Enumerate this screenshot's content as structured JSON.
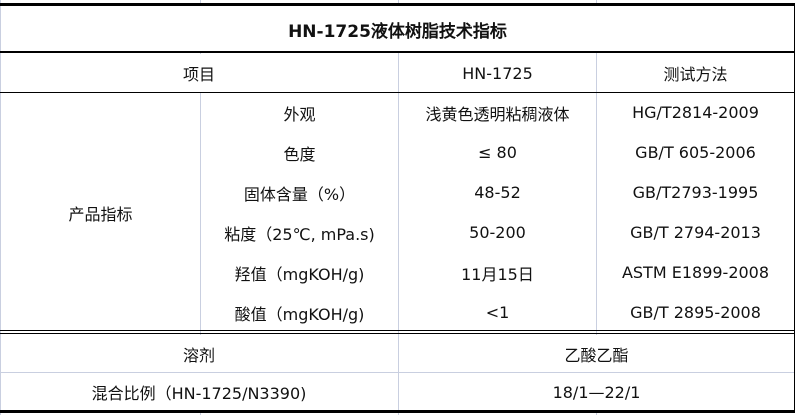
{
  "title": "HN-1725液体树脂技术指标",
  "header": {
    "item": "项目",
    "product": "HN-1725",
    "method": "测试方法"
  },
  "group_label": "产品指标",
  "rows": [
    {
      "name": "外观",
      "value": "浅黄色透明粘稠液体",
      "method": "HG/T2814-2009"
    },
    {
      "name": "色度",
      "value": "≤ 80",
      "method": "GB/T 605-2006"
    },
    {
      "name": "固体含量（%）",
      "value": "48-52",
      "method": "GB/T2793-1995"
    },
    {
      "name": "粘度（25℃, mPa.s)",
      "value": "50-200",
      "method": "GB/T 2794-2013"
    },
    {
      "name": "羟值（mgKOH/g)",
      "value": "11月15日",
      "method": "ASTM E1899-2008"
    },
    {
      "name": "酸值（mgKOH/g)",
      "value": "<1",
      "method": "GB/T 2895-2008"
    }
  ],
  "solvent": {
    "label": "溶剂",
    "value": "乙酸乙酯"
  },
  "mix_ratio": {
    "label": "混合比例（HN-1725/N3390)",
    "value": "18/1—22/1"
  }
}
